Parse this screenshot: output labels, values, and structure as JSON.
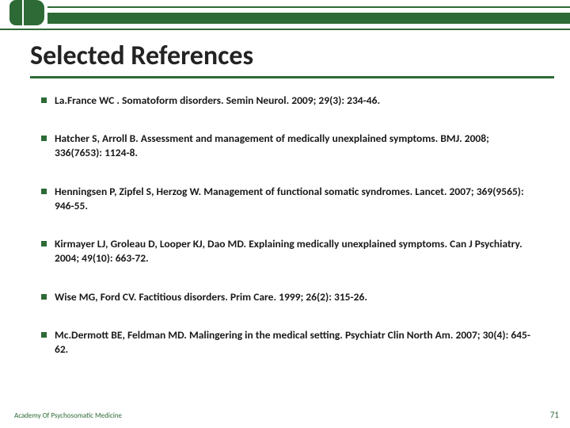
{
  "colors": {
    "brand_green": "#2d6a36",
    "text": "#1a1a1a",
    "background": "#ffffff"
  },
  "typography": {
    "title_fontsize": 34,
    "title_weight": 700,
    "body_fontsize": 13.5,
    "body_weight": 600,
    "footer_fontsize": 9
  },
  "header": {
    "title": "Selected References"
  },
  "references": [
    {
      "text": "La.France WC . Somatoform disorders. Semin Neurol. 2009; 29(3): 234-46."
    },
    {
      "text": "Hatcher S, Arroll B. Assessment and management of medically unexplained symptoms. BMJ. 2008; 336(7653): 1124-8."
    },
    {
      "text": "Henningsen P, Zipfel S, Herzog W. Management of functional somatic syndromes. Lancet. 2007; 369(9565): 946-55."
    },
    {
      "text": "Kirmayer LJ, Groleau D, Looper KJ, Dao MD. Explaining medically unexplained symptoms. Can J Psychiatry. 2004; 49(10): 663-72."
    },
    {
      "text": "Wise MG, Ford CV. Factitious disorders. Prim Care. 1999; 26(2): 315-26."
    },
    {
      "text": "Mc.Dermott BE, Feldman MD. Malingering in the medical setting. Psychiatr Clin North Am. 2007; 30(4): 645-62."
    }
  ],
  "footer": {
    "left": "Academy Of Psychosomatic Medicine",
    "page_number": "71"
  },
  "layout": {
    "slide_width": 720,
    "slide_height": 540,
    "bullet_shape": "square",
    "bullet_size": 7,
    "item_spacing": 30
  }
}
